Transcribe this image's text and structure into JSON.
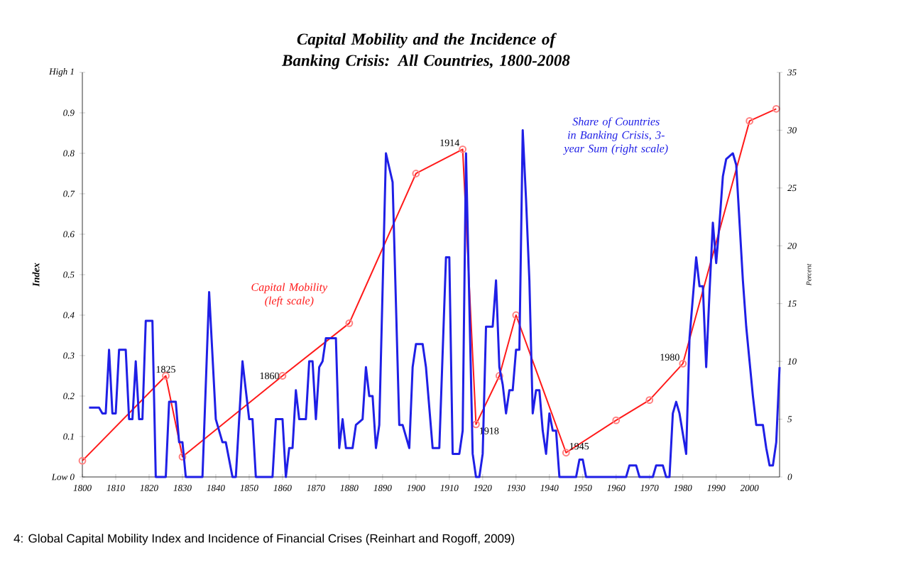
{
  "chart_data": {
    "type": "line",
    "title": "Capital Mobility and the Incidence of Banking Crisis: All Countries, 1800-2008",
    "ylabel": "Index",
    "y2label": "Percent",
    "xlim": [
      1800,
      2009
    ],
    "xticks": [
      1800,
      1810,
      1820,
      1830,
      1840,
      1850,
      1860,
      1870,
      1880,
      1890,
      1900,
      1910,
      1920,
      1930,
      1940,
      1950,
      1960,
      1970,
      1980,
      1990,
      2000
    ],
    "ylim": [
      0,
      1
    ],
    "yticks": [
      {
        "value": 0,
        "label": "Low 0"
      },
      0.1,
      0.2,
      0.3,
      0.4,
      0.5,
      0.6,
      0.7,
      0.8,
      0.9,
      {
        "value": 1,
        "label": "High 1"
      }
    ],
    "y2lim": [
      0,
      35
    ],
    "y2ticks": [
      0,
      5,
      10,
      15,
      20,
      25,
      30,
      35
    ],
    "series": [
      {
        "name": "Share of Countries in Banking Crisis, 3-year Sum (right scale)",
        "color": "#1f1fe6",
        "axis": "y2",
        "marker": "none",
        "x": [
          1802,
          1805,
          1806,
          1807,
          1808,
          1809,
          1810,
          1811,
          1813,
          1814,
          1815,
          1816,
          1817,
          1818,
          1819,
          1821,
          1822,
          1825,
          1826,
          1828,
          1829,
          1830,
          1831,
          1836,
          1838,
          1840,
          1842,
          1843,
          1845,
          1846,
          1847,
          1848,
          1850,
          1851,
          1852,
          1857,
          1858,
          1860,
          1861,
          1862,
          1863,
          1864,
          1865,
          1867,
          1868,
          1869,
          1870,
          1871,
          1872,
          1873,
          1876,
          1877,
          1878,
          1879,
          1881,
          1882,
          1884,
          1885,
          1886,
          1887,
          1888,
          1889,
          1891,
          1893,
          1895,
          1896,
          1898,
          1899,
          1900,
          1902,
          1903,
          1905,
          1907,
          1909,
          1910,
          1911,
          1913,
          1914,
          1915,
          1917,
          1918,
          1919,
          1920,
          1921,
          1923,
          1924,
          1925,
          1926,
          1927,
          1928,
          1929,
          1930,
          1931,
          1932,
          1933,
          1934,
          1935,
          1936,
          1937,
          1938,
          1939,
          1940,
          1941,
          1942,
          1943,
          1948,
          1949,
          1950,
          1951,
          1963,
          1964,
          1966,
          1967,
          1971,
          1972,
          1974,
          1975,
          1976,
          1977,
          1978,
          1979,
          1981,
          1982,
          1984,
          1985,
          1986,
          1987,
          1988,
          1989,
          1990,
          1991,
          1992,
          1993,
          1995,
          1996,
          1998,
          1999,
          2000,
          2001,
          2002,
          2004,
          2005,
          2006,
          2007,
          2008,
          2009
        ],
        "values": [
          6,
          6,
          5.5,
          5.5,
          11,
          5.5,
          5.5,
          11,
          11,
          5,
          5,
          10,
          5,
          5,
          13.5,
          13.5,
          0,
          0,
          6.5,
          6.5,
          3,
          3,
          0,
          0,
          16,
          5,
          3,
          3,
          0,
          0,
          5,
          10,
          5,
          5,
          0,
          0,
          5,
          5,
          0,
          2.5,
          2.5,
          7.5,
          5,
          5,
          10,
          10,
          5,
          9.5,
          10,
          12,
          12,
          2.5,
          5,
          2.5,
          2.5,
          4.5,
          5,
          9.5,
          7,
          7,
          2.5,
          4.5,
          28,
          25.5,
          4.5,
          4.5,
          2.5,
          9.5,
          11.5,
          11.5,
          9.5,
          2.5,
          2.5,
          19,
          19,
          2,
          2,
          4,
          28,
          2,
          0,
          0,
          2,
          13,
          13,
          17,
          9.5,
          8,
          5.5,
          7.5,
          7.5,
          11,
          11,
          30,
          24,
          17,
          5.5,
          7.5,
          7.5,
          4,
          2,
          5.5,
          4,
          4,
          0,
          0,
          1.5,
          1.5,
          0,
          0,
          1,
          1,
          0,
          0,
          1,
          1,
          0,
          0,
          5.5,
          6.5,
          5.5,
          2,
          12,
          19,
          16.5,
          16.5,
          9.5,
          16,
          22,
          18.5,
          22,
          26,
          27.5,
          28,
          27,
          17,
          13,
          10,
          7,
          4.5,
          4.5,
          2.5,
          1,
          1,
          3,
          9.5
        ]
      },
      {
        "name": "Capital Mobility (left scale)",
        "color": "#ff1a1a",
        "marker": "circle",
        "x": [
          1800,
          1825,
          1830,
          1860,
          1880,
          1900,
          1914,
          1918,
          1925,
          1930,
          1945,
          1960,
          1970,
          1980,
          2000,
          2008
        ],
        "values": [
          0.04,
          0.25,
          0.05,
          0.25,
          0.38,
          0.75,
          0.81,
          0.13,
          0.25,
          0.4,
          0.06,
          0.14,
          0.19,
          0.28,
          0.88,
          0.91
        ]
      }
    ],
    "annotations": [
      {
        "text": "1825",
        "x": 1825,
        "y": 0.25
      },
      {
        "text": "1860",
        "x": 1860,
        "y": 0.25
      },
      {
        "text": "1914",
        "x": 1914,
        "y": 0.81
      },
      {
        "text": "1918",
        "x": 1918,
        "y": 0.13
      },
      {
        "text": "1945",
        "x": 1945,
        "y": 0.06
      },
      {
        "text": "1980",
        "x": 1980,
        "y": 0.28
      },
      "4: Global Capital Mobility Index and Incidence of Financial Crises (Reinhart and Rogoff, 2009)"
    ]
  }
}
